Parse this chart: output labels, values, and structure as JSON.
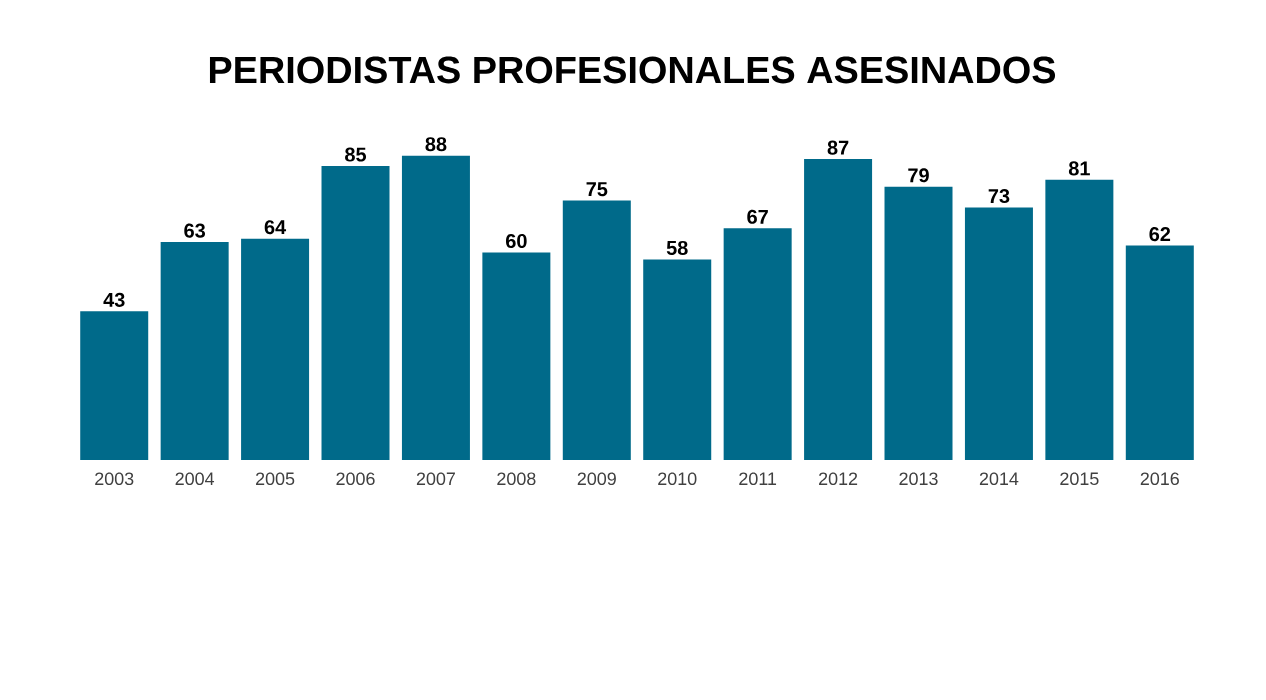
{
  "chart_data": {
    "type": "bar",
    "title": "PERIODISTAS PROFESIONALES ASESINADOS",
    "categories": [
      "2003",
      "2004",
      "2005",
      "2006",
      "2007",
      "2008",
      "2009",
      "2010",
      "2011",
      "2012",
      "2013",
      "2014",
      "2015",
      "2016"
    ],
    "values": [
      43,
      63,
      64,
      85,
      88,
      60,
      75,
      58,
      67,
      87,
      79,
      73,
      81,
      62
    ],
    "color": "#006a8a",
    "data_labels": true
  }
}
